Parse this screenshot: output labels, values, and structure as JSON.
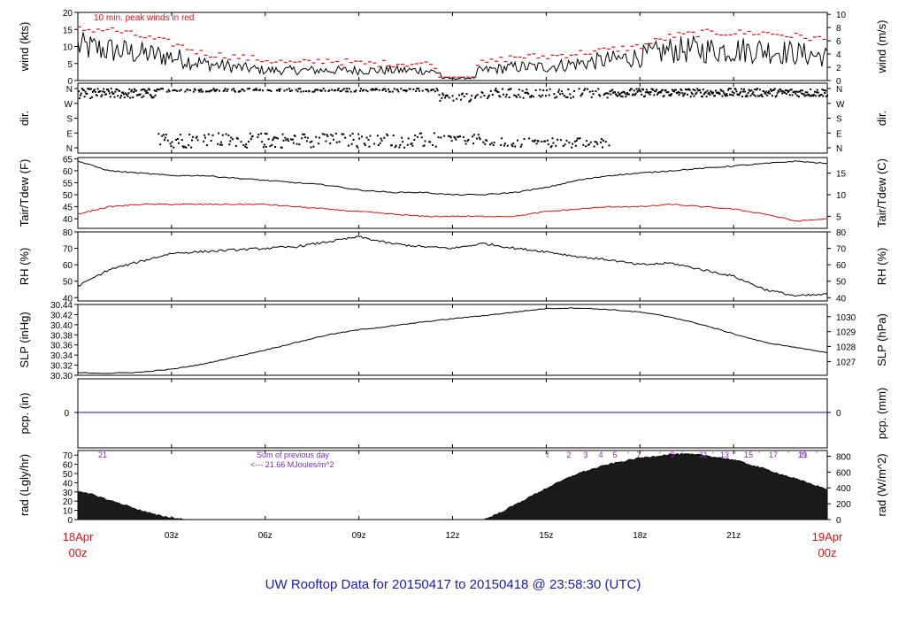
{
  "title": "UW Rooftop Data for 20150417  to  20150418 @ 23:58:30  (UTC)",
  "colors": {
    "black": "#000000",
    "red": "#dd1111",
    "blue": "#1010cc",
    "purple": "#7a2cc4",
    "title": "#1a1ab4"
  },
  "x_axis": {
    "ticks": [
      {
        "pos": 0,
        "label": "18Apr",
        "label2": "00z",
        "major": true
      },
      {
        "pos": 3,
        "label": "03z"
      },
      {
        "pos": 6,
        "label": "06z"
      },
      {
        "pos": 9,
        "label": "09z"
      },
      {
        "pos": 12,
        "label": "12z"
      },
      {
        "pos": 15,
        "label": "15z"
      },
      {
        "pos": 18,
        "label": "18z"
      },
      {
        "pos": 21,
        "label": "21z"
      },
      {
        "pos": 24,
        "label": "19Apr",
        "label2": "00z",
        "major": true
      }
    ]
  },
  "panels": {
    "wind": {
      "left_label": "wind (kts)",
      "right_label": "wind (m/s)",
      "note": "10 min. peak winds in red",
      "left_ticks": [
        "0",
        "5",
        "10",
        "15",
        "20"
      ],
      "right_ticks": [
        "0",
        "2",
        "4",
        "6",
        "8",
        "10"
      ]
    },
    "dir": {
      "left_label": "dir.",
      "right_label": "dir.",
      "ticks": [
        "N",
        "W",
        "S",
        "E",
        "N"
      ]
    },
    "temp": {
      "left_label": "Tair/Tdew (F)",
      "right_label": "Tair/Tdew (C)",
      "left_ticks": [
        "40",
        "45",
        "50",
        "55",
        "60",
        "65"
      ],
      "right_ticks": [
        "5",
        "10",
        "15"
      ]
    },
    "rh": {
      "left_label": "RH (%)",
      "right_label": "RH (%)",
      "left_ticks": [
        "40",
        "50",
        "60",
        "70",
        "80"
      ],
      "right_ticks": [
        "40",
        "50",
        "60",
        "70",
        "80"
      ]
    },
    "slp": {
      "left_label": "SLP (inHg)",
      "right_label": "SLP (hPa)",
      "left_ticks": [
        "30.30",
        "30.32",
        "30.34",
        "30.36",
        "30.38",
        "30.40",
        "30.42",
        "30.44"
      ],
      "right_ticks": [
        "1027",
        "1028",
        "1029",
        "1030"
      ]
    },
    "pcp": {
      "left_label": "pcp. (in)",
      "right_label": "pcp. (mm)",
      "left_ticks": [
        "0"
      ],
      "right_ticks": [
        "0"
      ]
    },
    "rad": {
      "left_label": "rad (Lgly/hr)",
      "right_label": "rad (W/m^2)",
      "left_ticks": [
        "0",
        "10",
        "20",
        "30",
        "40",
        "50",
        "60",
        "70"
      ],
      "right_ticks": [
        "0",
        "200",
        "400",
        "600",
        "800"
      ],
      "sum_label": "Sum of previous day",
      "sum_value": "<--- 21.66 MJoules/m^2",
      "hour_marks": [
        "21",
        "f",
        "2",
        "3",
        "4",
        "5",
        "'",
        "7",
        "'",
        "9",
        "'",
        "11",
        "'",
        "13",
        "'",
        "15",
        "'",
        "17",
        "'",
        "19",
        "'",
        "21"
      ]
    }
  },
  "chart_data": [
    {
      "type": "line",
      "title": "wind",
      "ylabel": "wind (kts)",
      "ylim": [
        0,
        20
      ],
      "x": [
        0,
        1,
        2,
        3,
        4,
        5,
        6,
        7,
        8,
        9,
        10,
        11,
        12,
        13,
        14,
        15,
        16,
        17,
        18,
        19,
        20,
        21,
        22,
        23,
        24
      ],
      "series": [
        {
          "name": "wind (kts)",
          "values": [
            10,
            9,
            8,
            7,
            5,
            4,
            3,
            3,
            3,
            3,
            3,
            3,
            2,
            3,
            4,
            4,
            5,
            6,
            7,
            9,
            9,
            9,
            9,
            8,
            7
          ]
        },
        {
          "name": "10 min. peak winds in red",
          "values": [
            15,
            15,
            13,
            11,
            8,
            7,
            6,
            5,
            6,
            5,
            5,
            5,
            4,
            5,
            7,
            7,
            8,
            9,
            10,
            13,
            14,
            14,
            14,
            13,
            12
          ]
        }
      ]
    },
    {
      "type": "scatter",
      "title": "dir.",
      "ylabel": "dir.",
      "yticks": [
        "N",
        "W",
        "S",
        "E",
        "N"
      ]
    },
    {
      "type": "line",
      "title": "Tair/Tdew",
      "ylabel": "Tair/Tdew (F)",
      "ylim": [
        36,
        65
      ],
      "x": [
        0,
        1,
        2,
        3,
        4,
        5,
        6,
        7,
        8,
        9,
        10,
        11,
        12,
        13,
        14,
        15,
        16,
        17,
        18,
        19,
        20,
        21,
        22,
        23,
        24
      ],
      "series": [
        {
          "name": "Tair",
          "values": [
            64,
            60,
            59,
            58,
            58,
            57,
            56,
            55,
            54,
            52,
            51,
            51,
            50,
            50,
            51,
            53,
            56,
            58,
            59,
            60,
            61,
            62,
            63,
            64,
            63
          ]
        },
        {
          "name": "Tdew",
          "values": [
            42,
            45,
            46,
            46,
            46,
            46,
            46,
            45,
            44,
            43,
            42,
            41,
            41,
            41,
            41,
            43,
            44,
            45,
            45,
            46,
            45,
            44,
            42,
            39,
            40
          ]
        }
      ]
    },
    {
      "type": "line",
      "title": "RH",
      "ylabel": "RH (%)",
      "ylim": [
        38,
        80
      ],
      "x": [
        0,
        1,
        2,
        3,
        4,
        5,
        6,
        7,
        8,
        9,
        10,
        11,
        12,
        13,
        14,
        15,
        16,
        17,
        18,
        19,
        20,
        21,
        22,
        23,
        24
      ],
      "series": [
        {
          "name": "RH",
          "values": [
            47,
            57,
            62,
            67,
            68,
            69,
            70,
            71,
            74,
            77,
            73,
            71,
            70,
            73,
            70,
            68,
            65,
            63,
            60,
            61,
            57,
            53,
            45,
            41,
            42
          ]
        }
      ]
    },
    {
      "type": "line",
      "title": "SLP",
      "ylabel": "SLP (inHg)",
      "ylim": [
        30.3,
        30.44
      ],
      "x": [
        0,
        1,
        2,
        3,
        4,
        5,
        6,
        7,
        8,
        9,
        10,
        11,
        12,
        13,
        14,
        15,
        16,
        17,
        18,
        19,
        20,
        21,
        22,
        23,
        24
      ],
      "series": [
        {
          "name": "SLP",
          "values": [
            30.305,
            30.304,
            30.306,
            30.312,
            30.322,
            30.336,
            30.35,
            30.365,
            30.38,
            30.39,
            30.397,
            30.405,
            30.412,
            30.418,
            30.425,
            30.432,
            30.433,
            30.43,
            30.425,
            30.415,
            30.4,
            30.382,
            30.365,
            30.355,
            30.345
          ]
        }
      ]
    },
    {
      "type": "line",
      "title": "pcp.",
      "ylabel": "pcp. (in)",
      "x": [
        0,
        24
      ],
      "series": [
        {
          "name": "pcp.",
          "values": [
            0,
            0
          ]
        }
      ]
    },
    {
      "type": "area",
      "title": "rad",
      "ylabel": "rad (Lgly/hr)",
      "ylim": [
        0,
        75
      ],
      "x": [
        0,
        0.5,
        1,
        1.5,
        2,
        2.5,
        3,
        3.5,
        4,
        12.8,
        13,
        13.5,
        14,
        15,
        16,
        17,
        18,
        19,
        19.5,
        20,
        21,
        22,
        23,
        24
      ],
      "series": [
        {
          "name": "rad",
          "values": [
            30,
            27,
            21,
            16,
            10,
            5,
            2,
            0,
            0,
            0,
            0,
            7,
            16,
            34,
            50,
            60,
            67,
            71,
            71,
            70,
            65,
            55,
            44,
            33
          ]
        }
      ]
    }
  ]
}
